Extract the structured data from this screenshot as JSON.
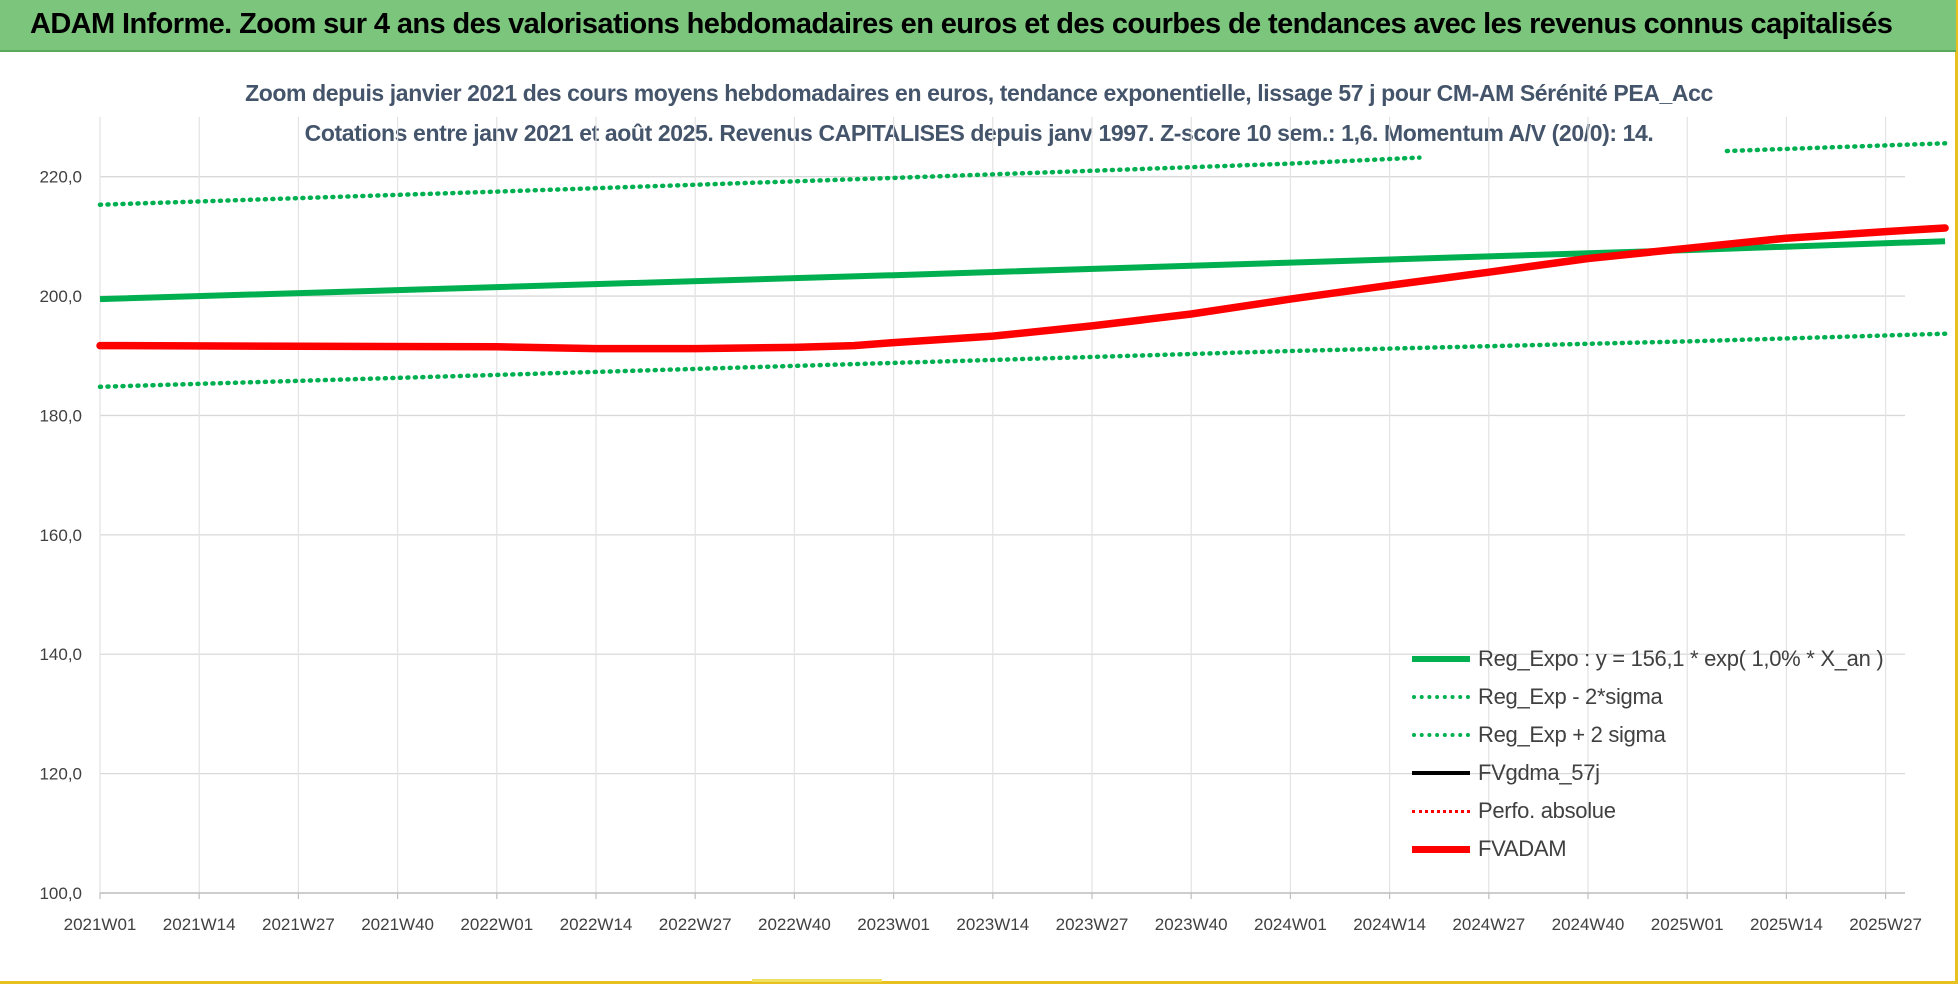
{
  "header": {
    "title": "ADAM Informe. Zoom sur 4 ans des valorisations hebdomadaires en euros et des courbes de tendances avec les revenus connus capitalisés"
  },
  "colors": {
    "header_bg": "#7cc57c",
    "trend_green": "#00b050",
    "fvadam_red": "#ff0000",
    "title_text": "#44546a",
    "grid": "#d9d9d9"
  },
  "chart_data": {
    "type": "line",
    "title": "Zoom depuis janvier 2021 des cours moyens hebdomadaires en euros, tendance exponentielle, lissage 57 j pour CM-AM Sérénité PEA_Acc",
    "subtitle": "Cotations entre janv 2021 et août 2025.  Revenus CAPITALISES depuis janv 1997. Z-score 10 sem.: 1,6. Momentum A/V (20/0): 14.",
    "xlabel": "",
    "ylabel": "",
    "ylim": [
      100,
      230
    ],
    "y_ticks": [
      "100,0",
      "120,0",
      "140,0",
      "160,0",
      "180,0",
      "200,0",
      "220,0"
    ],
    "x_ticks": [
      "2021W01",
      "2021W14",
      "2021W27",
      "2021W40",
      "2022W01",
      "2022W14",
      "2022W27",
      "2022W40",
      "2023W01",
      "2023W14",
      "2023W27",
      "2023W40",
      "2024W01",
      "2024W14",
      "2024W27",
      "2024W40",
      "2025W01",
      "2025W14",
      "2025W27"
    ],
    "grid": true,
    "legend_position": "bottom-right",
    "series": [
      {
        "name": "Reg_Expo : y = 156,1 * exp( 1,0% *  X_an )",
        "style": "solid",
        "color": "#00b050",
        "points": [
          [
            0,
            199.5
          ],
          [
            4,
            201.5
          ],
          [
            8,
            203.5
          ],
          [
            12,
            205.6
          ],
          [
            16,
            207.7
          ],
          [
            18.6,
            209.2
          ]
        ]
      },
      {
        "name": "Reg_Exp - 2*sigma",
        "style": "dotted",
        "color": "#00b050",
        "points": [
          [
            0,
            184.8
          ],
          [
            4,
            186.8
          ],
          [
            8,
            188.8
          ],
          [
            12,
            190.8
          ],
          [
            16,
            192.4
          ],
          [
            18.6,
            193.7
          ]
        ]
      },
      {
        "name": "Reg_Exp + 2 sigma",
        "style": "dotted",
        "color": "#00b050",
        "points": [
          [
            0,
            215.3
          ],
          [
            4,
            217.5
          ],
          [
            8,
            219.8
          ],
          [
            12,
            222.2
          ],
          [
            13.3,
            223.2
          ]
        ],
        "points_2": [
          [
            16.4,
            224.3
          ],
          [
            18.6,
            225.6
          ]
        ]
      },
      {
        "name": "FVgdma_57j",
        "style": "solid",
        "color": "#000000",
        "points": []
      },
      {
        "name": "Perfo. absolue",
        "style": "dotted",
        "color": "#ff0000",
        "points": []
      },
      {
        "name": "FVADAM",
        "style": "solid",
        "color": "#ff0000",
        "points": [
          [
            0,
            191.7
          ],
          [
            2,
            191.6
          ],
          [
            4,
            191.5
          ],
          [
            5,
            191.2
          ],
          [
            6,
            191.2
          ],
          [
            7,
            191.4
          ],
          [
            7.6,
            191.7
          ],
          [
            8,
            192.2
          ],
          [
            9,
            193.3
          ],
          [
            10,
            195
          ],
          [
            11,
            197
          ],
          [
            12,
            199.5
          ],
          [
            13,
            201.8
          ],
          [
            14,
            204
          ],
          [
            15,
            206.3
          ],
          [
            16,
            208
          ],
          [
            17,
            209.7
          ],
          [
            18,
            210.8
          ],
          [
            18.6,
            211.4
          ]
        ]
      }
    ]
  }
}
